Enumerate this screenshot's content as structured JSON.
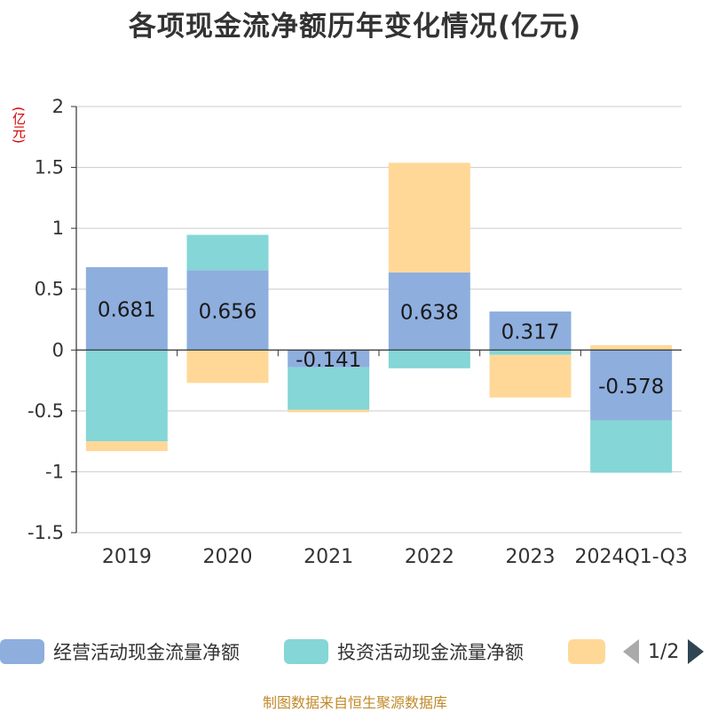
{
  "title": "各项现金流净额历年变化情况(亿元)",
  "unit_label": "(亿元)",
  "source": "制图数据来自恒生聚源数据库",
  "legend": {
    "items": [
      {
        "label": "经营活动现金流量净额",
        "color": "#8eaede"
      },
      {
        "label": "投资活动现金流量净额",
        "color": "#85d6d6"
      },
      {
        "label": "",
        "color": "#ffd898"
      }
    ],
    "page": "1/2"
  },
  "chart_data": {
    "type": "bar",
    "stacked": true,
    "categories": [
      "2019",
      "2020",
      "2021",
      "2022",
      "2023",
      "2024Q1-Q3"
    ],
    "series": [
      {
        "name": "经营活动现金流量净额",
        "color": "#8eaede",
        "values": [
          0.681,
          0.656,
          -0.141,
          0.638,
          0.317,
          -0.578
        ]
      },
      {
        "name": "投资活动现金流量净额",
        "color": "#85d6d6",
        "values": [
          -0.75,
          0.29,
          -0.35,
          -0.15,
          -0.04,
          -0.43
        ]
      },
      {
        "color": "#ffd898",
        "values": [
          -0.08,
          -0.27,
          -0.02,
          0.9,
          -0.35,
          0.04
        ]
      }
    ],
    "data_labels": [
      "0.681",
      "0.656",
      "-0.141",
      "0.638",
      "0.317",
      "-0.578"
    ],
    "ylim": [
      -1.5,
      2
    ],
    "yticks": [
      2,
      1.5,
      1,
      0.5,
      0,
      -0.5,
      -1,
      -1.5
    ],
    "ytick_labels": [
      "2",
      "1.5",
      "1",
      "0.5",
      "0",
      "-0.5",
      "-1",
      "-1.5"
    ],
    "grid": true,
    "legend_position": "bottom"
  }
}
